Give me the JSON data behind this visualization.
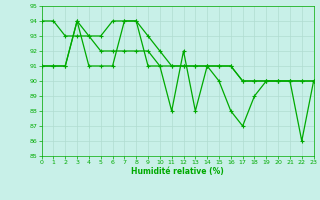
{
  "background_color": "#c8f0e8",
  "grid_color": "#b0dcd0",
  "line_color": "#00aa00",
  "marker_color": "#00aa00",
  "xlabel": "Humidité relative (%)",
  "xlabel_color": "#00aa00",
  "tick_color": "#00aa00",
  "ylim": [
    85,
    95
  ],
  "xlim": [
    0,
    23
  ],
  "yticks": [
    85,
    86,
    87,
    88,
    89,
    90,
    91,
    92,
    93,
    94,
    95
  ],
  "xticks": [
    0,
    1,
    2,
    3,
    4,
    5,
    6,
    7,
    8,
    9,
    10,
    11,
    12,
    13,
    14,
    15,
    16,
    17,
    18,
    19,
    20,
    21,
    22,
    23
  ],
  "series": [
    [
      91,
      91,
      91,
      94,
      91,
      91,
      91,
      94,
      94,
      91,
      91,
      88,
      92,
      88,
      91,
      90,
      88,
      87,
      89,
      90,
      90,
      90,
      86,
      90
    ],
    [
      91,
      91,
      91,
      94,
      93,
      93,
      94,
      94,
      94,
      93,
      92,
      91,
      91,
      91,
      91,
      91,
      91,
      90,
      90,
      90,
      90,
      90,
      90,
      90
    ],
    [
      94,
      94,
      93,
      93,
      93,
      92,
      92,
      92,
      92,
      92,
      91,
      91,
      91,
      91,
      91,
      91,
      91,
      90,
      90,
      90,
      90,
      90,
      90,
      90
    ]
  ],
  "marker_size": 2.5,
  "line_width": 0.9
}
